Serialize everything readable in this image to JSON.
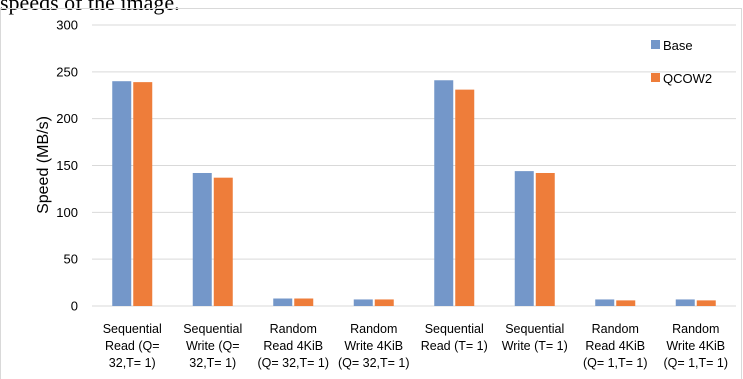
{
  "header": {
    "text": "speeds of the image."
  },
  "chart_data": {
    "type": "bar",
    "title": "",
    "xlabel": "",
    "ylabel": "Speed (MB/s)",
    "ylim": [
      0,
      300
    ],
    "yticks": [
      0,
      50,
      100,
      150,
      200,
      250,
      300
    ],
    "grid": true,
    "legend_position": "top-right",
    "categories": [
      [
        "Sequential",
        "Read (Q=",
        "32,T= 1)"
      ],
      [
        "Sequential",
        "Write (Q=",
        "32,T= 1)"
      ],
      [
        "Random",
        "Read 4KiB",
        "(Q= 32,T= 1)"
      ],
      [
        "Random",
        "Write 4KiB",
        "(Q= 32,T= 1)"
      ],
      [
        "Sequential",
        "Read (T= 1)"
      ],
      [
        "Sequential",
        "Write (T= 1)"
      ],
      [
        "Random",
        "Read 4KiB",
        "(Q= 1,T= 1)"
      ],
      [
        "Random",
        "Write 4KiB",
        "(Q= 1,T= 1)"
      ]
    ],
    "series": [
      {
        "name": "Base",
        "color": "#7497c9",
        "values": [
          240,
          142,
          8,
          7,
          241,
          144,
          7,
          7
        ]
      },
      {
        "name": "QCOW2",
        "color": "#ee7d3a",
        "values": [
          239,
          137,
          8,
          7,
          231,
          142,
          6,
          6
        ]
      }
    ]
  }
}
